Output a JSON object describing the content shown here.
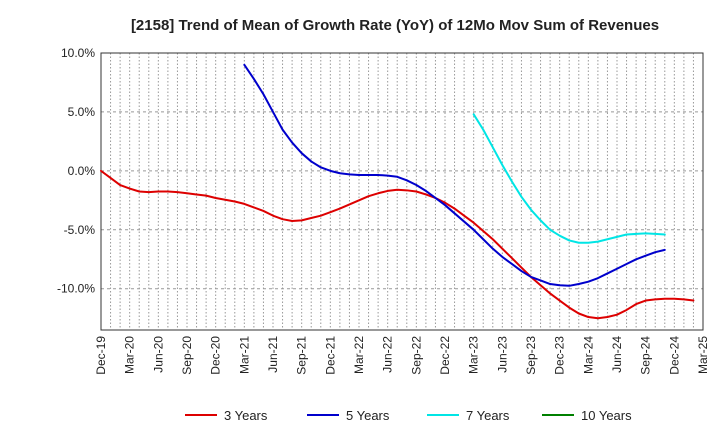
{
  "chart_data": {
    "type": "line",
    "title": "[2158]  Trend of Mean of Growth Rate (YoY) of 12Mo Mov Sum of Revenues",
    "xlabel": "",
    "ylabel": "",
    "ylim": [
      -13.5,
      10
    ],
    "yticks": [
      10,
      5,
      0,
      -5,
      -10
    ],
    "ytick_labels": [
      "10.0%",
      "5.0%",
      "0.0%",
      "-5.0%",
      "-10.0%"
    ],
    "x_start": "Dec-19",
    "x_end": "Mar-25",
    "x_tick_labels": [
      "Dec-19",
      "Mar-20",
      "Jun-20",
      "Sep-20",
      "Dec-20",
      "Mar-21",
      "Jun-21",
      "Sep-21",
      "Dec-21",
      "Mar-22",
      "Jun-22",
      "Sep-22",
      "Dec-22",
      "Mar-23",
      "Jun-23",
      "Sep-23",
      "Dec-23",
      "Mar-24",
      "Jun-24",
      "Sep-24",
      "Dec-24",
      "Mar-25"
    ],
    "grid": true,
    "legend_position": "bottom",
    "series": [
      {
        "name": "3 Years",
        "color": "#dd0000",
        "start_month_index": 0,
        "values": [
          0.0,
          -0.6,
          -1.2,
          -1.5,
          -1.75,
          -1.8,
          -1.75,
          -1.75,
          -1.8,
          -1.9,
          -2.0,
          -2.1,
          -2.3,
          -2.45,
          -2.6,
          -2.8,
          -3.1,
          -3.4,
          -3.8,
          -4.1,
          -4.25,
          -4.2,
          -4.0,
          -3.8,
          -3.5,
          -3.2,
          -2.85,
          -2.5,
          -2.15,
          -1.9,
          -1.7,
          -1.6,
          -1.65,
          -1.75,
          -2.0,
          -2.3,
          -2.7,
          -3.2,
          -3.8,
          -4.4,
          -5.1,
          -5.8,
          -6.6,
          -7.4,
          -8.2,
          -9.0,
          -9.7,
          -10.4,
          -11.0,
          -11.6,
          -12.1,
          -12.4,
          -12.5,
          -12.4,
          -12.2,
          -11.8,
          -11.3,
          -11.0,
          -10.9,
          -10.85,
          -10.85,
          -10.9,
          -11.0
        ]
      },
      {
        "name": "5 Years",
        "color": "#0000cc",
        "start_month_index": 15,
        "values": [
          9.0,
          7.8,
          6.5,
          5.0,
          3.5,
          2.4,
          1.5,
          0.8,
          0.3,
          0.0,
          -0.2,
          -0.3,
          -0.35,
          -0.35,
          -0.35,
          -0.4,
          -0.5,
          -0.8,
          -1.2,
          -1.7,
          -2.3,
          -2.9,
          -3.6,
          -4.3,
          -5.0,
          -5.8,
          -6.6,
          -7.3,
          -7.9,
          -8.5,
          -9.0,
          -9.3,
          -9.6,
          -9.7,
          -9.75,
          -9.6,
          -9.4,
          -9.1,
          -8.7,
          -8.3,
          -7.9,
          -7.5,
          -7.2,
          -6.9,
          -6.7
        ]
      },
      {
        "name": "7 Years",
        "color": "#00e5e5",
        "start_month_index": 39,
        "values": [
          4.8,
          3.5,
          2.0,
          0.5,
          -0.9,
          -2.2,
          -3.3,
          -4.2,
          -5.0,
          -5.5,
          -5.9,
          -6.1,
          -6.1,
          -6.0,
          -5.8,
          -5.6,
          -5.4,
          -5.35,
          -5.3,
          -5.35,
          -5.4
        ]
      },
      {
        "name": "10 Years",
        "color": "#008000",
        "start_month_index": 0,
        "values": []
      }
    ]
  }
}
